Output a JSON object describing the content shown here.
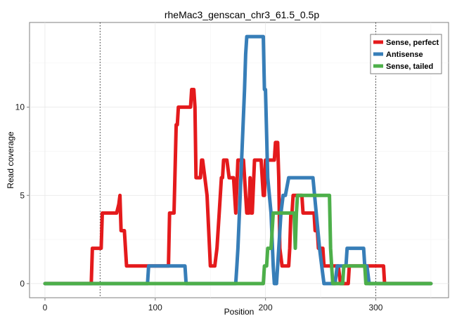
{
  "chart_data": {
    "type": "line",
    "title": "rheMac3_genscan_chr3_61.5_0.5p",
    "xlabel": "Position",
    "ylabel": "Read coverage",
    "xlim": [
      -14,
      366
    ],
    "ylim": [
      -0.8,
      14.8
    ],
    "x_ticks": [
      0,
      100,
      200,
      300
    ],
    "x_tick_labels": [
      "0",
      "100",
      "200",
      "300"
    ],
    "y_ticks": [
      0,
      5,
      10
    ],
    "y_tick_labels": [
      "0",
      "5",
      "10"
    ],
    "grid": true,
    "vlines": [
      50,
      300
    ],
    "legend_position": "top-right",
    "series": [
      {
        "name": "Sense, perfect",
        "color": "#e41a1c",
        "points": [
          [
            0,
            0
          ],
          [
            42,
            0
          ],
          [
            43,
            2
          ],
          [
            51,
            2
          ],
          [
            52,
            4
          ],
          [
            65,
            4
          ],
          [
            67,
            4.5
          ],
          [
            68,
            5
          ],
          [
            69,
            3
          ],
          [
            72,
            3
          ],
          [
            74,
            1
          ],
          [
            104,
            1
          ],
          [
            112,
            1
          ],
          [
            113,
            4
          ],
          [
            117,
            4
          ],
          [
            119,
            9
          ],
          [
            120,
            9
          ],
          [
            121,
            10
          ],
          [
            132,
            10
          ],
          [
            133,
            11
          ],
          [
            135,
            11
          ],
          [
            136,
            10
          ],
          [
            137,
            6
          ],
          [
            141,
            6
          ],
          [
            142,
            7
          ],
          [
            143,
            7
          ],
          [
            145,
            6
          ],
          [
            147,
            5
          ],
          [
            150,
            1
          ],
          [
            154,
            1
          ],
          [
            156,
            2
          ],
          [
            158,
            4
          ],
          [
            160,
            6
          ],
          [
            161,
            6
          ],
          [
            162,
            7
          ],
          [
            165,
            7
          ],
          [
            167,
            6
          ],
          [
            171,
            6
          ],
          [
            173,
            4
          ],
          [
            175,
            7
          ],
          [
            180,
            7
          ],
          [
            182,
            5
          ],
          [
            183,
            4
          ],
          [
            185,
            4
          ],
          [
            186,
            6
          ],
          [
            187,
            4
          ],
          [
            188,
            4
          ],
          [
            190,
            7
          ],
          [
            196,
            7
          ],
          [
            198,
            5
          ],
          [
            199,
            5
          ],
          [
            200,
            7
          ],
          [
            208,
            7
          ],
          [
            209,
            8
          ],
          [
            211,
            8
          ],
          [
            212,
            6
          ],
          [
            213,
            2
          ],
          [
            215,
            1
          ],
          [
            221,
            1
          ],
          [
            222,
            2
          ],
          [
            223,
            4
          ],
          [
            224,
            4
          ],
          [
            225,
            5
          ],
          [
            233,
            5
          ],
          [
            234,
            4
          ],
          [
            244,
            4
          ],
          [
            245,
            3
          ],
          [
            247,
            3
          ],
          [
            248,
            2
          ],
          [
            252,
            2
          ],
          [
            253,
            1
          ],
          [
            266,
            1
          ],
          [
            268,
            0
          ],
          [
            275,
            0
          ],
          [
            276,
            1
          ],
          [
            307,
            1
          ],
          [
            308,
            0
          ],
          [
            350,
            0
          ]
        ]
      },
      {
        "name": "Antisense",
        "color": "#377eb8",
        "points": [
          [
            0,
            0
          ],
          [
            93,
            0
          ],
          [
            94,
            1
          ],
          [
            127,
            1
          ],
          [
            128,
            0
          ],
          [
            173,
            0
          ],
          [
            174,
            1
          ],
          [
            175,
            2
          ],
          [
            177,
            5
          ],
          [
            179,
            8
          ],
          [
            181,
            11
          ],
          [
            182,
            13
          ],
          [
            183,
            14
          ],
          [
            198,
            14
          ],
          [
            199,
            11
          ],
          [
            200,
            11
          ],
          [
            202,
            6
          ],
          [
            205,
            4
          ],
          [
            207,
            1
          ],
          [
            208,
            0
          ],
          [
            210,
            0
          ],
          [
            212,
            2
          ],
          [
            214,
            4
          ],
          [
            216,
            5
          ],
          [
            218,
            5
          ],
          [
            221,
            6
          ],
          [
            243,
            6
          ],
          [
            246,
            4
          ],
          [
            249,
            2
          ],
          [
            251,
            1
          ],
          [
            253,
            0
          ],
          [
            263,
            0
          ],
          [
            265,
            1
          ],
          [
            271,
            1
          ],
          [
            272,
            1
          ],
          [
            273,
            1
          ],
          [
            274,
            2
          ],
          [
            289,
            2
          ],
          [
            290,
            1
          ],
          [
            292,
            1
          ],
          [
            294,
            0
          ],
          [
            350,
            0
          ]
        ]
      },
      {
        "name": "Sense, tailed",
        "color": "#4daf4a",
        "points": [
          [
            0,
            0
          ],
          [
            198,
            0
          ],
          [
            199,
            1
          ],
          [
            201,
            1
          ],
          [
            202,
            2
          ],
          [
            205,
            2
          ],
          [
            206,
            3
          ],
          [
            207,
            4
          ],
          [
            226,
            4
          ],
          [
            227,
            2
          ],
          [
            228,
            4
          ],
          [
            229,
            5
          ],
          [
            231,
            5
          ],
          [
            233,
            5
          ],
          [
            258,
            5
          ],
          [
            259,
            2
          ],
          [
            260,
            1
          ],
          [
            261,
            0
          ],
          [
            270,
            0
          ],
          [
            271,
            1
          ],
          [
            290,
            1
          ],
          [
            291,
            0
          ],
          [
            350,
            0
          ]
        ]
      }
    ]
  }
}
